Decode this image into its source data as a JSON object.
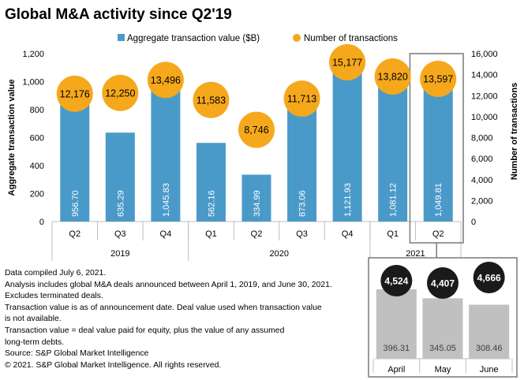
{
  "chart_data": [
    {
      "type": "bar+scatter",
      "title": "Global M&A activity since Q2'19",
      "legend": {
        "placement": "top",
        "entries": [
          "Aggregate transaction value ($B)",
          "Number of transactions"
        ]
      },
      "ylabel": "Aggregate transaction value",
      "y2label": "Number of transactions",
      "ylim": [
        0,
        1200
      ],
      "yticks": [
        "0",
        "200",
        "400",
        "600",
        "800",
        "1,000",
        "1,200"
      ],
      "y2lim": [
        0,
        16000
      ],
      "y2ticks": [
        "0",
        "2,000",
        "4,000",
        "6,000",
        "8,000",
        "10,000",
        "12,000",
        "14,000",
        "16,000"
      ],
      "categories": [
        "Q2",
        "Q3",
        "Q4",
        "Q1",
        "Q2",
        "Q3",
        "Q4",
        "Q1",
        "Q2"
      ],
      "year_groups": [
        {
          "label": "2019",
          "span": 3
        },
        {
          "label": "2020",
          "span": 4
        },
        {
          "label": "2021",
          "span": 2
        }
      ],
      "series": [
        {
          "name": "Aggregate transaction value ($B)",
          "values": [
            956.7,
            635.29,
            1045.83,
            562.16,
            334.99,
            873.06,
            1121.93,
            1081.12,
            1049.81
          ],
          "labels": [
            "956.70",
            "635.29",
            "1,045.83",
            "562.16",
            "334.99",
            "873.06",
            "1,121.93",
            "1,081.12",
            "1,049.81"
          ]
        },
        {
          "name": "Number of transactions",
          "values": [
            12176,
            12250,
            13496,
            11583,
            8746,
            11713,
            15177,
            13820,
            13597
          ],
          "labels": [
            "12,176",
            "12,250",
            "13,496",
            "11,583",
            "8,746",
            "11,713",
            "15,177",
            "13,820",
            "13,597"
          ]
        }
      ],
      "grid": false,
      "colors": {
        "bar": "#4a9ac9",
        "dot": "#f6a81c",
        "axis": "#bfbfbf",
        "highlight": "#808080"
      }
    },
    {
      "type": "bar+scatter",
      "categories": [
        "April",
        "May",
        "June"
      ],
      "series": [
        {
          "name": "Aggregate transaction value ($B)",
          "values": [
            396.31,
            345.05,
            308.46
          ],
          "labels": [
            "396.31",
            "345.05",
            "308.46"
          ]
        },
        {
          "name": "Number of transactions",
          "values": [
            4524,
            4407,
            4666
          ],
          "labels": [
            "4,524",
            "4,407",
            "4,666"
          ]
        }
      ],
      "colors": {
        "bar": "#c0c0c0",
        "dot": "#1a1a1a",
        "border": "#808080"
      }
    }
  ],
  "notes": [
    "Data compiled July 6, 2021.",
    "Analysis includes global M&A deals announced between April 1, 2019, and June 30, 2021.",
    "Excludes terminated deals.",
    "Transaction value is as of announcement date. Deal value used when transaction value",
    "is not available.",
    "Transaction value = deal value paid for equity, plus the value of any assumed",
    "long-term debts.",
    "Source: S&P Global Market Intelligence",
    "© 2021. S&P Global Market Intelligence. All rights reserved."
  ]
}
